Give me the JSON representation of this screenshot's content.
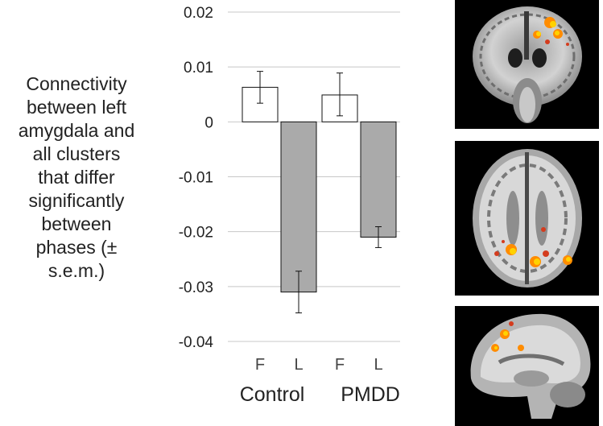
{
  "chart_data": {
    "type": "bar",
    "ylabel": "Connectivity between left amygdala and all clusters that differ significantly between phases (± s.e.m.)",
    "ylabel_lines": [
      "Connectivity",
      "between left",
      "amygdala and",
      "all clusters",
      "that differ",
      "significantly",
      "between",
      "phases (±",
      "s.e.m.)"
    ],
    "ylim": [
      -0.04,
      0.02
    ],
    "yticks": [
      0.02,
      0.01,
      0,
      -0.01,
      -0.02,
      -0.03,
      -0.04
    ],
    "ytick_labels": [
      "0.02",
      "0.01",
      "0",
      "-0.01",
      "-0.02",
      "-0.03",
      "-0.04"
    ],
    "grid": true,
    "groups": [
      "Control",
      "PMDD"
    ],
    "bars": [
      {
        "group": "Control",
        "label": "F",
        "value": 0.0063,
        "err_low": 0.0034,
        "err_high": 0.0092,
        "color": "#ffffff"
      },
      {
        "group": "Control",
        "label": "L",
        "value": -0.031,
        "err_low": -0.0348,
        "err_high": -0.0272,
        "color": "#aaaaaa"
      },
      {
        "group": "PMDD",
        "label": "F",
        "value": 0.0049,
        "err_low": 0.0011,
        "err_high": 0.0089,
        "color": "#ffffff"
      },
      {
        "group": "PMDD",
        "label": "L",
        "value": -0.021,
        "err_low": -0.0229,
        "err_high": -0.0191,
        "color": "#aaaaaa"
      }
    ]
  },
  "brain_images": {
    "views": [
      "coronal",
      "axial",
      "sagittal"
    ],
    "overlay_colors": [
      "#ffd200",
      "#ff8c00",
      "#d43c1e"
    ]
  }
}
